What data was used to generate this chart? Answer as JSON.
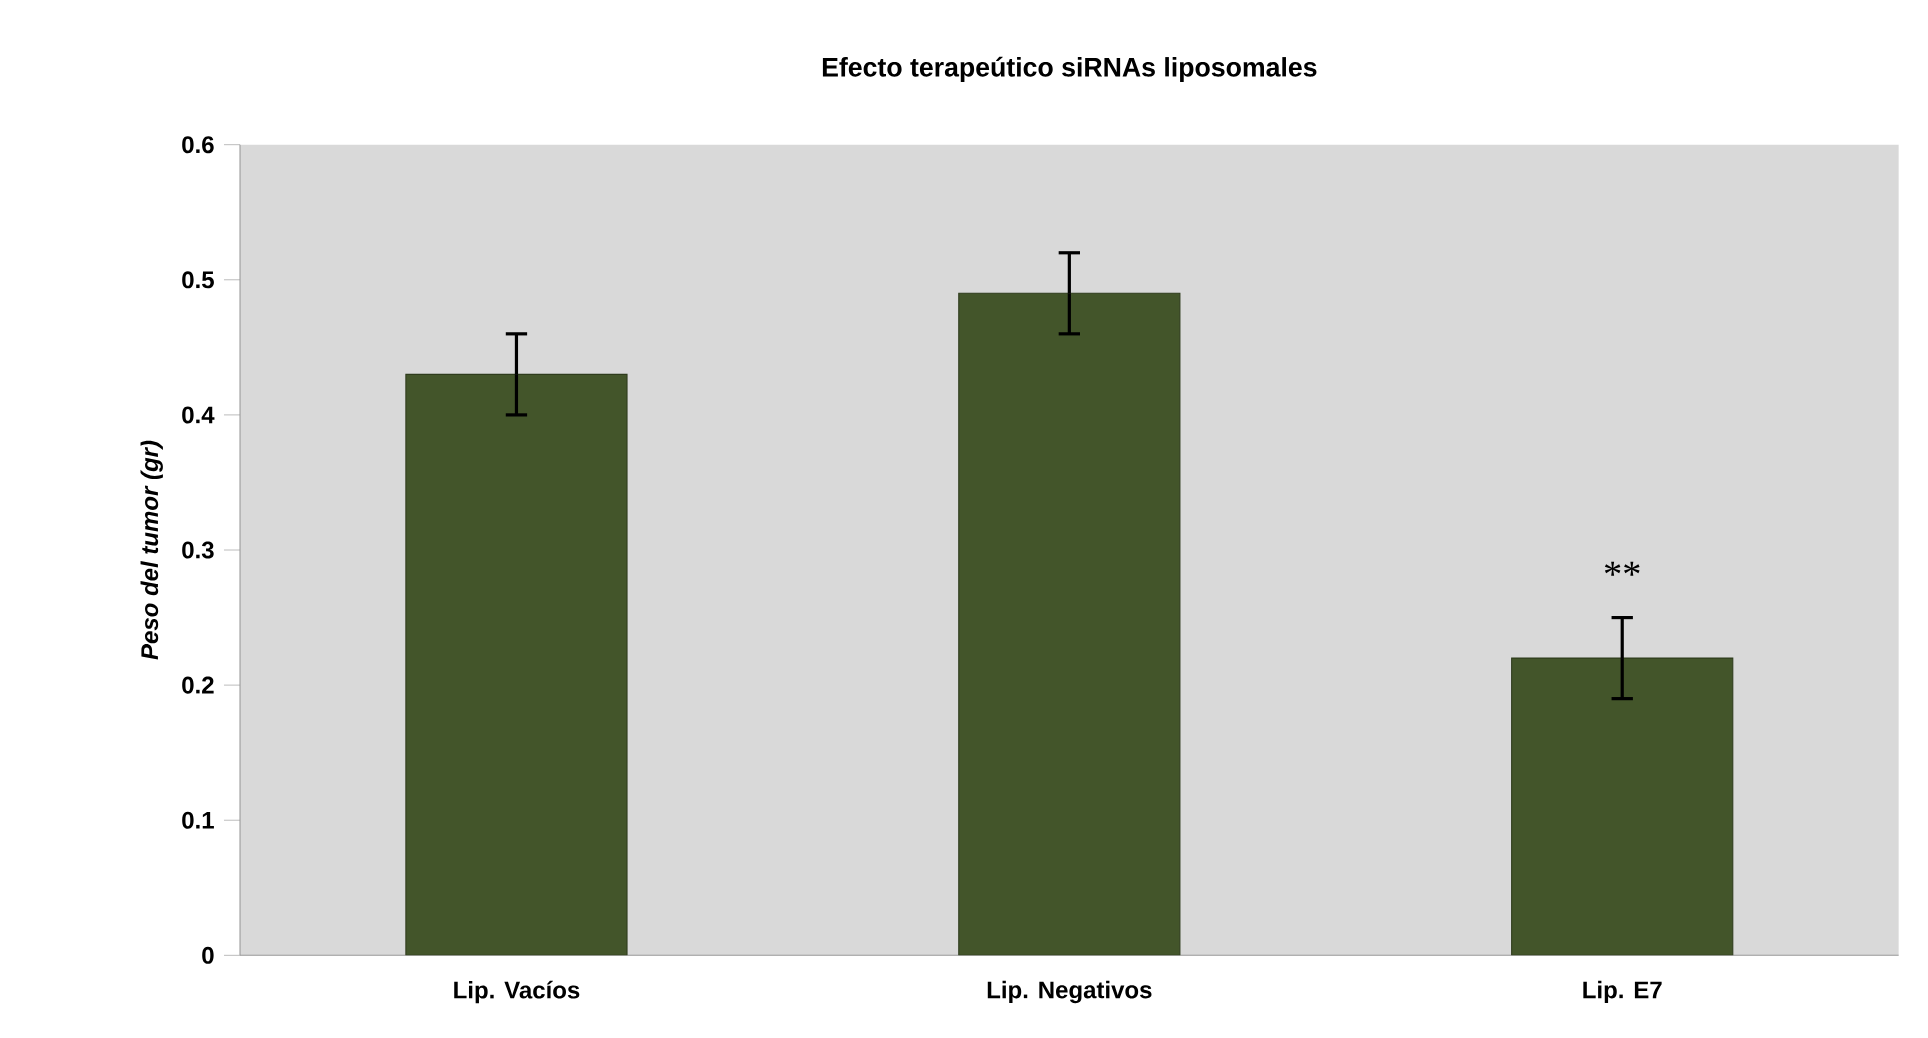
{
  "chart_data": {
    "type": "bar",
    "title": "Efecto terapeútico siRNAs liposomales",
    "ylabel": "Peso del tumor (gr)",
    "categories": [
      "Lip. Vacíos",
      "Lip. Negativos",
      "Lip. E7"
    ],
    "values": [
      0.43,
      0.49,
      0.22
    ],
    "errors": [
      0.03,
      0.03,
      0.03
    ],
    "color": "#43552a",
    "ylim": [
      0,
      0.6
    ],
    "yticks": [
      0,
      0.1,
      0.2,
      0.3,
      0.4,
      0.5,
      0.6
    ],
    "grid": false,
    "annotations": [
      "**"
    ]
  }
}
